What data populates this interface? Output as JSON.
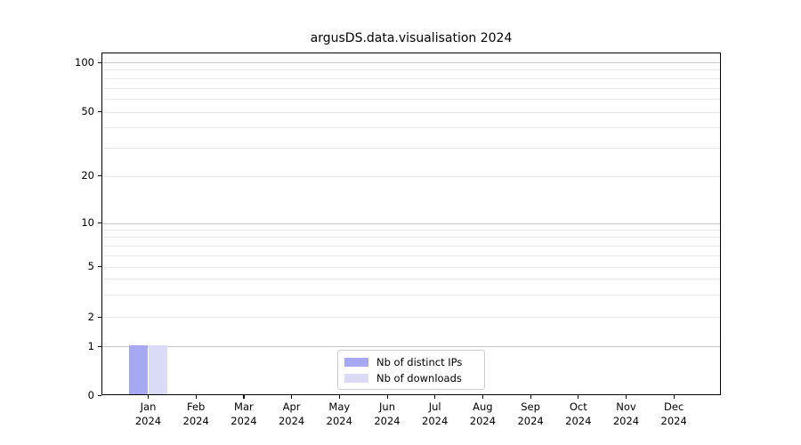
{
  "title": "argusDS.data.visualisation 2024",
  "chart_data": {
    "type": "bar",
    "title": "argusDS.data.visualisation 2024",
    "categories": [
      "Jan 2024",
      "Feb 2024",
      "Mar 2024",
      "Apr 2024",
      "May 2024",
      "Jun 2024",
      "Jul 2024",
      "Aug 2024",
      "Sep 2024",
      "Oct 2024",
      "Nov 2024",
      "Dec 2024"
    ],
    "series": [
      {
        "name": "Nb of distinct IPs",
        "color": "#a7a7f2",
        "values": [
          1,
          0,
          0,
          0,
          0,
          0,
          0,
          0,
          0,
          0,
          0,
          0
        ]
      },
      {
        "name": "Nb of downloads",
        "color": "#dbdbf8",
        "values": [
          1,
          0,
          0,
          0,
          0,
          0,
          0,
          0,
          0,
          0,
          0,
          0
        ]
      }
    ],
    "xlabel": "",
    "ylabel": "",
    "y_axis": {
      "scale": "symlog",
      "ticks": [
        0,
        1,
        2,
        5,
        10,
        20,
        50,
        100
      ],
      "minor_gridlines": [
        3,
        4,
        6,
        7,
        8,
        9,
        30,
        40,
        60,
        70,
        80,
        90
      ],
      "emphasized_gridlines": [
        1,
        10,
        100
      ],
      "ylim": [
        0,
        115
      ]
    },
    "legend": {
      "position": "lower center"
    },
    "grid": true
  }
}
